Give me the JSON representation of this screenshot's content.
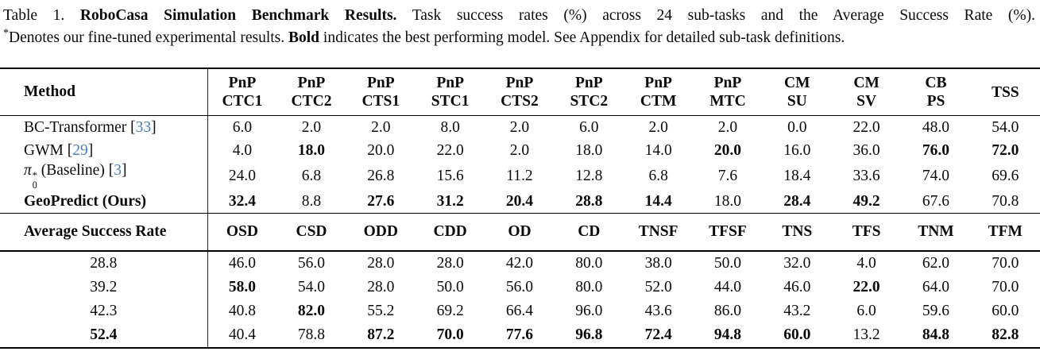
{
  "colors": {
    "citation_blue": "#4b7fbd",
    "text": "#0b0b0b"
  },
  "caption": {
    "label": "Table 1.",
    "title_bold": "RoboCasa Simulation Benchmark Results.",
    "line1_rest": "Task success rates (%) across 24 sub-tasks and the Average Success Rate (%).",
    "star": "*",
    "line2_a": "Denotes our fine-tuned experimental results.",
    "line2_bold": "Bold",
    "line2_b": "indicates the best performing model. See Appendix for detailed sub-task definitions."
  },
  "table": {
    "cite_open": "[",
    "cite_close": "]",
    "method_header": "Method",
    "col_headers_block1": [
      [
        "PnP",
        "CTC1"
      ],
      [
        "PnP",
        "CTC2"
      ],
      [
        "PnP",
        "CTS1"
      ],
      [
        "PnP",
        "STC1"
      ],
      [
        "PnP",
        "CTS2"
      ],
      [
        "PnP",
        "STC2"
      ],
      [
        "PnP",
        "CTM"
      ],
      [
        "PnP",
        "MTC"
      ],
      [
        "CM",
        "SU"
      ],
      [
        "CM",
        "SV"
      ],
      [
        "CB",
        "PS"
      ],
      [
        "TSS"
      ]
    ],
    "rows_block1": [
      {
        "label": [
          {
            "t": "text",
            "v": "BC-Transformer "
          },
          {
            "t": "cite",
            "v": "33"
          }
        ],
        "bold_label": false,
        "values": [
          "6.0",
          "2.0",
          "2.0",
          "8.0",
          "2.0",
          "6.0",
          "2.0",
          "2.0",
          "0.0",
          "22.0",
          "48.0",
          "54.0"
        ],
        "bold": [
          false,
          false,
          false,
          false,
          false,
          false,
          false,
          false,
          false,
          false,
          false,
          false
        ]
      },
      {
        "label": [
          {
            "t": "text",
            "v": "GWM "
          },
          {
            "t": "cite",
            "v": "29"
          }
        ],
        "bold_label": false,
        "values": [
          "4.0",
          "18.0",
          "20.0",
          "22.0",
          "2.0",
          "18.0",
          "14.0",
          "20.0",
          "16.0",
          "36.0",
          "76.0",
          "72.0"
        ],
        "bold": [
          false,
          true,
          false,
          false,
          false,
          false,
          false,
          true,
          false,
          false,
          true,
          true
        ]
      },
      {
        "label": [
          {
            "t": "math",
            "base": "π",
            "sup": "*",
            "sub": "0"
          },
          {
            "t": "text",
            "v": " (Baseline) "
          },
          {
            "t": "cite",
            "v": "3"
          }
        ],
        "bold_label": false,
        "values": [
          "24.0",
          "6.8",
          "26.8",
          "15.6",
          "11.2",
          "12.8",
          "6.8",
          "7.6",
          "18.4",
          "33.6",
          "74.0",
          "69.6"
        ],
        "bold": [
          false,
          false,
          false,
          false,
          false,
          false,
          false,
          false,
          false,
          false,
          false,
          false
        ]
      },
      {
        "label": [
          {
            "t": "text",
            "v": "GeoPredict (Ours)"
          }
        ],
        "bold_label": true,
        "values": [
          "32.4",
          "8.8",
          "27.6",
          "31.2",
          "20.4",
          "28.8",
          "14.4",
          "18.0",
          "28.4",
          "49.2",
          "67.6",
          "70.8"
        ],
        "bold": [
          true,
          false,
          true,
          true,
          true,
          true,
          true,
          false,
          true,
          true,
          false,
          false
        ]
      }
    ],
    "avg_header": "Average Success Rate",
    "col_headers_block2": [
      "OSD",
      "CSD",
      "ODD",
      "CDD",
      "OD",
      "CD",
      "TNSF",
      "TFSF",
      "TNS",
      "TFS",
      "TNM",
      "TFM"
    ],
    "rows_block2": [
      {
        "avg": "28.8",
        "avg_bold": false,
        "values": [
          "46.0",
          "56.0",
          "28.0",
          "28.0",
          "42.0",
          "80.0",
          "38.0",
          "50.0",
          "32.0",
          "4.0",
          "62.0",
          "70.0"
        ],
        "bold": [
          false,
          false,
          false,
          false,
          false,
          false,
          false,
          false,
          false,
          false,
          false,
          false
        ]
      },
      {
        "avg": "39.2",
        "avg_bold": false,
        "values": [
          "58.0",
          "54.0",
          "28.0",
          "50.0",
          "56.0",
          "80.0",
          "52.0",
          "44.0",
          "46.0",
          "22.0",
          "64.0",
          "70.0"
        ],
        "bold": [
          true,
          false,
          false,
          false,
          false,
          false,
          false,
          false,
          false,
          true,
          false,
          false
        ]
      },
      {
        "avg": "42.3",
        "avg_bold": false,
        "values": [
          "40.8",
          "82.0",
          "55.2",
          "69.2",
          "66.4",
          "96.0",
          "43.6",
          "86.0",
          "43.2",
          "6.0",
          "59.6",
          "60.0"
        ],
        "bold": [
          false,
          true,
          false,
          false,
          false,
          false,
          false,
          false,
          false,
          false,
          false,
          false
        ]
      },
      {
        "avg": "52.4",
        "avg_bold": true,
        "values": [
          "40.4",
          "78.8",
          "87.2",
          "70.0",
          "77.6",
          "96.8",
          "72.4",
          "94.8",
          "60.0",
          "13.2",
          "84.8",
          "82.8"
        ],
        "bold": [
          false,
          false,
          true,
          true,
          true,
          true,
          true,
          true,
          true,
          false,
          true,
          true
        ]
      }
    ]
  }
}
